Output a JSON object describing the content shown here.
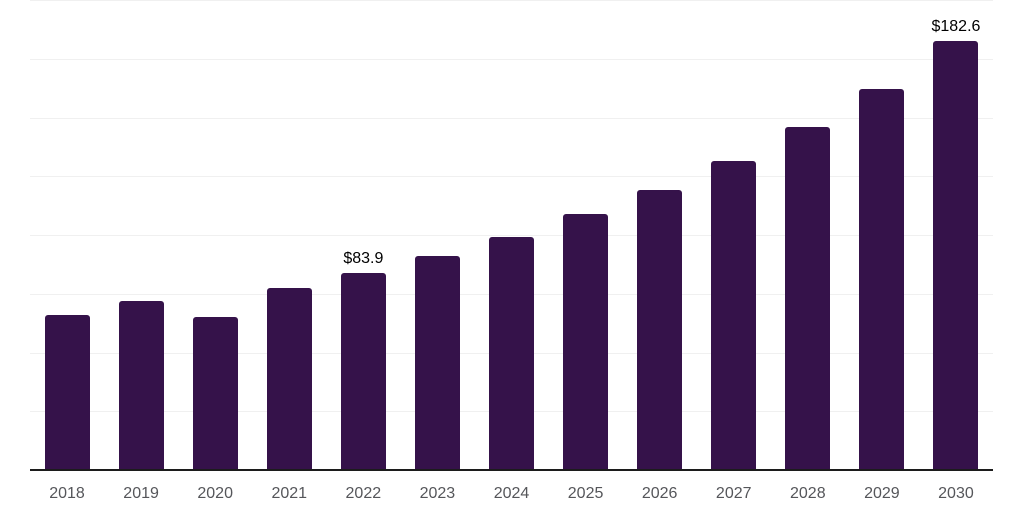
{
  "chart_data": {
    "type": "bar",
    "title": "",
    "xlabel": "",
    "ylabel": "",
    "categories": [
      "2018",
      "2019",
      "2020",
      "2021",
      "2022",
      "2023",
      "2024",
      "2025",
      "2026",
      "2027",
      "2028",
      "2029",
      "2030"
    ],
    "values": [
      65.8,
      71.8,
      65.2,
      77.3,
      83.9,
      90.9,
      99.2,
      108.8,
      119.2,
      131.6,
      145.8,
      162.2,
      182.6
    ],
    "data_labels": [
      "",
      "",
      "",
      "",
      "$83.9",
      "",
      "",
      "",
      "",
      "",
      "",
      "",
      "$182.6"
    ],
    "ylim": [
      0,
      200
    ],
    "grid_interval": 25,
    "grid_on": true,
    "legend_position": "none",
    "colors": {
      "bar": "#35124A",
      "gridline": "#F0F0F0",
      "axis_line": "#1C1C1C",
      "tick_label": "#55565A",
      "data_label": "#000000",
      "background": "#FFFFFF"
    }
  }
}
